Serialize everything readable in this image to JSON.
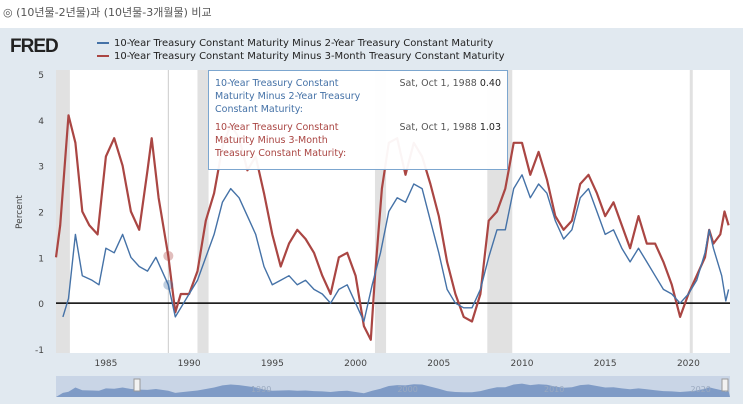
{
  "header": {
    "title": "◎ (10년물-2년물)과 (10년물-3개월물) 비교"
  },
  "logo": "FRED",
  "legend": [
    {
      "label": "10-Year Treasury Constant Maturity Minus 2-Year Treasury Constant Maturity",
      "color": "#4572a7"
    },
    {
      "label": "10-Year Treasury Constant Maturity Minus 3-Month Treasury Constant Maturity",
      "color": "#aa4643"
    }
  ],
  "tooltip": {
    "rows": [
      {
        "label": "10-Year Treasury Constant Maturity Minus 2-Year Treasury Constant Maturity:",
        "date": "Sat, Oct 1, 1988",
        "value": "0.40",
        "color": "#4572a7"
      },
      {
        "label": "10-Year Treasury Constant Maturity Minus 3-Month Treasury Constant Maturity:",
        "date": "Sat, Oct 1, 1988",
        "value": "1.03",
        "color": "#aa4643"
      }
    ]
  },
  "chart_data": {
    "type": "line",
    "ylabel": "Percent",
    "ylim": [
      -1,
      5
    ],
    "yticks": [
      "-1",
      "0",
      "1",
      "2",
      "3",
      "4",
      "5"
    ],
    "xticks": [
      "1985",
      "1990",
      "1995",
      "2000",
      "2005",
      "2010",
      "2015",
      "2020"
    ],
    "xlim": [
      "1982-01",
      "2022-07"
    ],
    "grid": false,
    "recessions": [
      [
        "1981-07",
        "1982-11"
      ],
      [
        "1990-07",
        "1991-03"
      ],
      [
        "2001-03",
        "2001-11"
      ],
      [
        "2007-12",
        "2009-06"
      ],
      [
        "2020-02",
        "2020-04"
      ]
    ],
    "cursor": "1988-10",
    "navigator_labels": [
      "1990",
      "2000",
      "2010",
      "2020"
    ],
    "series": [
      {
        "name": "10-Year Treasury Constant Maturity Minus 2-Year Treasury Constant Maturity",
        "color": "#4572a7",
        "points": [
          [
            "1982-06",
            -0.3
          ],
          [
            "1982-10",
            0.1
          ],
          [
            "1983-03",
            1.5
          ],
          [
            "1983-08",
            0.6
          ],
          [
            "1984-03",
            0.5
          ],
          [
            "1984-08",
            0.4
          ],
          [
            "1985-01",
            1.2
          ],
          [
            "1985-07",
            1.1
          ],
          [
            "1986-01",
            1.5
          ],
          [
            "1986-07",
            1.0
          ],
          [
            "1987-01",
            0.8
          ],
          [
            "1987-07",
            0.7
          ],
          [
            "1988-01",
            1.0
          ],
          [
            "1988-10",
            0.4
          ],
          [
            "1989-03",
            -0.3
          ],
          [
            "1989-07",
            -0.1
          ],
          [
            "1990-01",
            0.2
          ],
          [
            "1990-07",
            0.5
          ],
          [
            "1991-01",
            1.0
          ],
          [
            "1991-07",
            1.5
          ],
          [
            "1992-01",
            2.2
          ],
          [
            "1992-07",
            2.5
          ],
          [
            "1993-01",
            2.3
          ],
          [
            "1993-07",
            1.9
          ],
          [
            "1994-01",
            1.5
          ],
          [
            "1994-07",
            0.8
          ],
          [
            "1995-01",
            0.4
          ],
          [
            "1995-07",
            0.5
          ],
          [
            "1996-01",
            0.6
          ],
          [
            "1996-07",
            0.4
          ],
          [
            "1997-01",
            0.5
          ],
          [
            "1997-07",
            0.3
          ],
          [
            "1998-01",
            0.2
          ],
          [
            "1998-07",
            0.0
          ],
          [
            "1999-01",
            0.3
          ],
          [
            "1999-07",
            0.4
          ],
          [
            "2000-01",
            0.0
          ],
          [
            "2000-07",
            -0.4
          ],
          [
            "2001-01",
            0.4
          ],
          [
            "2001-07",
            1.1
          ],
          [
            "2002-01",
            2.0
          ],
          [
            "2002-07",
            2.3
          ],
          [
            "2003-01",
            2.2
          ],
          [
            "2003-07",
            2.6
          ],
          [
            "2004-01",
            2.5
          ],
          [
            "2004-07",
            1.8
          ],
          [
            "2005-01",
            1.1
          ],
          [
            "2005-07",
            0.3
          ],
          [
            "2006-01",
            0.0
          ],
          [
            "2006-07",
            -0.1
          ],
          [
            "2007-01",
            -0.1
          ],
          [
            "2007-07",
            0.3
          ],
          [
            "2008-01",
            1.0
          ],
          [
            "2008-07",
            1.6
          ],
          [
            "2009-01",
            1.6
          ],
          [
            "2009-07",
            2.5
          ],
          [
            "2010-01",
            2.8
          ],
          [
            "2010-07",
            2.3
          ],
          [
            "2011-01",
            2.6
          ],
          [
            "2011-07",
            2.4
          ],
          [
            "2012-01",
            1.8
          ],
          [
            "2012-07",
            1.4
          ],
          [
            "2013-01",
            1.6
          ],
          [
            "2013-07",
            2.3
          ],
          [
            "2014-01",
            2.5
          ],
          [
            "2014-07",
            2.0
          ],
          [
            "2015-01",
            1.5
          ],
          [
            "2015-07",
            1.6
          ],
          [
            "2016-01",
            1.2
          ],
          [
            "2016-07",
            0.9
          ],
          [
            "2017-01",
            1.2
          ],
          [
            "2017-07",
            0.9
          ],
          [
            "2018-01",
            0.6
          ],
          [
            "2018-07",
            0.3
          ],
          [
            "2019-01",
            0.2
          ],
          [
            "2019-07",
            0.0
          ],
          [
            "2020-01",
            0.2
          ],
          [
            "2020-07",
            0.5
          ],
          [
            "2021-01",
            1.1
          ],
          [
            "2021-04",
            1.6
          ],
          [
            "2021-07",
            1.2
          ],
          [
            "2022-01",
            0.6
          ],
          [
            "2022-04",
            0.05
          ],
          [
            "2022-06",
            0.3
          ]
        ]
      },
      {
        "name": "10-Year Treasury Constant Maturity Minus 3-Month Treasury Constant Maturity",
        "color": "#aa4643",
        "points": [
          [
            "1982-01",
            1.0
          ],
          [
            "1982-04",
            1.7
          ],
          [
            "1982-10",
            4.1
          ],
          [
            "1983-03",
            3.5
          ],
          [
            "1983-08",
            2.0
          ],
          [
            "1984-01",
            1.7
          ],
          [
            "1984-07",
            1.5
          ],
          [
            "1985-01",
            3.2
          ],
          [
            "1985-07",
            3.6
          ],
          [
            "1986-01",
            3.0
          ],
          [
            "1986-07",
            2.0
          ],
          [
            "1987-01",
            1.6
          ],
          [
            "1987-07",
            2.9
          ],
          [
            "1987-10",
            3.6
          ],
          [
            "1988-03",
            2.3
          ],
          [
            "1988-10",
            1.03
          ],
          [
            "1989-03",
            -0.2
          ],
          [
            "1989-07",
            0.2
          ],
          [
            "1990-01",
            0.2
          ],
          [
            "1990-07",
            0.7
          ],
          [
            "1991-01",
            1.8
          ],
          [
            "1991-07",
            2.4
          ],
          [
            "1992-01",
            3.4
          ],
          [
            "1992-07",
            3.9
          ],
          [
            "1993-01",
            3.6
          ],
          [
            "1993-07",
            2.9
          ],
          [
            "1994-01",
            3.2
          ],
          [
            "1994-07",
            2.4
          ],
          [
            "1995-01",
            1.5
          ],
          [
            "1995-07",
            0.8
          ],
          [
            "1996-01",
            1.3
          ],
          [
            "1996-07",
            1.6
          ],
          [
            "1997-01",
            1.4
          ],
          [
            "1997-07",
            1.1
          ],
          [
            "1998-01",
            0.6
          ],
          [
            "1998-07",
            0.2
          ],
          [
            "1999-01",
            1.0
          ],
          [
            "1999-07",
            1.1
          ],
          [
            "2000-01",
            0.6
          ],
          [
            "2000-07",
            -0.5
          ],
          [
            "2000-12",
            -0.8
          ],
          [
            "2001-03",
            0.6
          ],
          [
            "2001-08",
            2.5
          ],
          [
            "2002-01",
            3.5
          ],
          [
            "2002-07",
            3.6
          ],
          [
            "2003-01",
            2.8
          ],
          [
            "2003-07",
            3.5
          ],
          [
            "2004-01",
            3.2
          ],
          [
            "2004-07",
            2.6
          ],
          [
            "2005-01",
            1.9
          ],
          [
            "2005-07",
            0.9
          ],
          [
            "2006-01",
            0.2
          ],
          [
            "2006-07",
            -0.3
          ],
          [
            "2007-01",
            -0.4
          ],
          [
            "2007-07",
            0.2
          ],
          [
            "2008-01",
            1.8
          ],
          [
            "2008-07",
            2.0
          ],
          [
            "2009-01",
            2.5
          ],
          [
            "2009-07",
            3.5
          ],
          [
            "2010-01",
            3.5
          ],
          [
            "2010-07",
            2.8
          ],
          [
            "2011-01",
            3.3
          ],
          [
            "2011-07",
            2.7
          ],
          [
            "2012-01",
            1.9
          ],
          [
            "2012-07",
            1.6
          ],
          [
            "2013-01",
            1.8
          ],
          [
            "2013-07",
            2.6
          ],
          [
            "2014-01",
            2.8
          ],
          [
            "2014-07",
            2.4
          ],
          [
            "2015-01",
            1.9
          ],
          [
            "2015-07",
            2.2
          ],
          [
            "2016-01",
            1.7
          ],
          [
            "2016-07",
            1.2
          ],
          [
            "2017-01",
            1.9
          ],
          [
            "2017-07",
            1.3
          ],
          [
            "2018-01",
            1.3
          ],
          [
            "2018-07",
            0.9
          ],
          [
            "2019-01",
            0.4
          ],
          [
            "2019-07",
            -0.3
          ],
          [
            "2020-01",
            0.2
          ],
          [
            "2020-07",
            0.6
          ],
          [
            "2021-01",
            1.0
          ],
          [
            "2021-04",
            1.6
          ],
          [
            "2021-07",
            1.3
          ],
          [
            "2021-12",
            1.5
          ],
          [
            "2022-03",
            2.0
          ],
          [
            "2022-06",
            1.7
          ]
        ]
      }
    ]
  }
}
